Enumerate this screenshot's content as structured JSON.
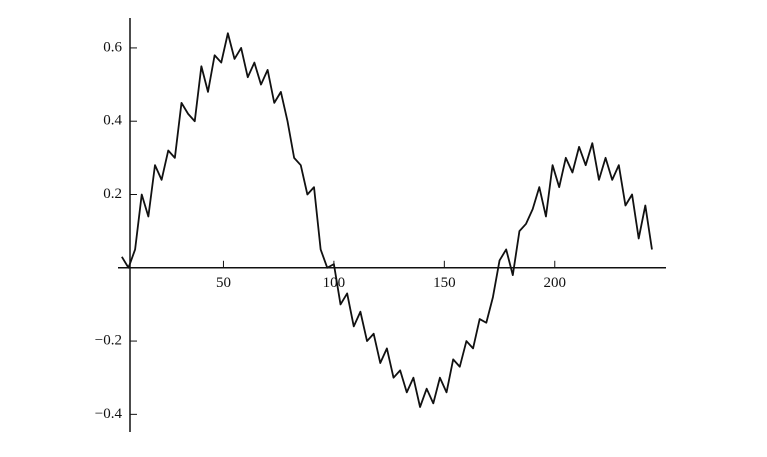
{
  "chart_data": {
    "type": "line",
    "x": [
      4,
      7,
      10,
      13,
      16,
      19,
      22,
      25,
      28,
      31,
      34,
      37,
      40,
      43,
      46,
      49,
      52,
      55,
      58,
      61,
      64,
      67,
      70,
      73,
      76,
      79,
      82,
      85,
      88,
      91,
      94,
      97,
      100,
      103,
      106,
      109,
      112,
      115,
      118,
      121,
      124,
      127,
      130,
      133,
      136,
      139,
      142,
      145,
      148,
      151,
      154,
      157,
      160,
      163,
      166,
      169,
      172,
      175,
      178,
      181,
      184,
      187,
      190,
      193,
      196,
      199,
      202,
      205,
      208,
      211,
      214,
      217,
      220,
      223,
      226,
      229,
      232,
      235,
      238,
      241,
      244
    ],
    "series": [
      {
        "color": "#111111",
        "values": [
          0.03,
          0.0,
          0.05,
          0.2,
          0.14,
          0.28,
          0.24,
          0.32,
          0.3,
          0.45,
          0.42,
          0.4,
          0.55,
          0.48,
          0.58,
          0.56,
          0.64,
          0.57,
          0.6,
          0.52,
          0.56,
          0.5,
          0.54,
          0.45,
          0.48,
          0.4,
          0.3,
          0.28,
          0.2,
          0.22,
          0.05,
          0.0,
          0.01,
          -0.1,
          -0.07,
          -0.16,
          -0.12,
          -0.2,
          -0.18,
          -0.26,
          -0.22,
          -0.3,
          -0.28,
          -0.34,
          -0.3,
          -0.38,
          -0.33,
          -0.37,
          -0.3,
          -0.34,
          -0.25,
          -0.27,
          -0.2,
          -0.22,
          -0.14,
          -0.15,
          -0.08,
          0.02,
          0.05,
          -0.02,
          0.1,
          0.12,
          0.16,
          0.22,
          0.14,
          0.28,
          0.22,
          0.3,
          0.26,
          0.33,
          0.28,
          0.34,
          0.24,
          0.3,
          0.24,
          0.28,
          0.17,
          0.2,
          0.08,
          0.17,
          0.05
        ]
      }
    ],
    "xlim": [
      -2,
      249
    ],
    "xticks": [
      50,
      100,
      150,
      200
    ],
    "ylim": [
      -0.44,
      0.65
    ],
    "yticks": [
      {
        "value": -0.4,
        "label": "−0.4"
      },
      {
        "value": -0.2,
        "label": "−0.2"
      },
      0.2,
      0.4,
      0.6
    ]
  }
}
